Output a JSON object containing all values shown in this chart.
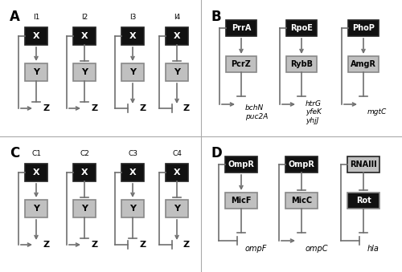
{
  "color_X_black": "#111111",
  "color_Y_gray": "#c0c0c0",
  "color_white": "#ffffff",
  "color_arrow": "#707070",
  "color_border": "#888888",
  "color_bg": "#ffffff",
  "color_divider": "#999999",
  "incoherent_types": [
    "I1",
    "I2",
    "I3",
    "I4"
  ],
  "coherent_types": [
    "C1",
    "C2",
    "C3",
    "C4"
  ],
  "B_top_labels": [
    "PrrA",
    "RpoE",
    "PhoP"
  ],
  "B_mid_labels": [
    "PcrZ",
    "RybB",
    "AmgR"
  ],
  "B_bot_labels": [
    "bchN\npuc2A",
    "htrG\nyfeK\nyhjJ",
    "mgtC"
  ],
  "D_top_labels": [
    "OmpR",
    "OmpR",
    "RNAIII"
  ],
  "D_mid_labels": [
    "MicF",
    "MicC",
    "Rot"
  ],
  "D_bot_labels": [
    "ompF",
    "ompC",
    "hla"
  ],
  "D_top_colors": [
    "black",
    "black",
    "gray"
  ],
  "D_mid_colors": [
    "gray",
    "gray",
    "black"
  ],
  "D_top_text_colors": [
    "white",
    "white",
    "black"
  ],
  "D_mid_text_colors": [
    "black",
    "black",
    "white"
  ]
}
